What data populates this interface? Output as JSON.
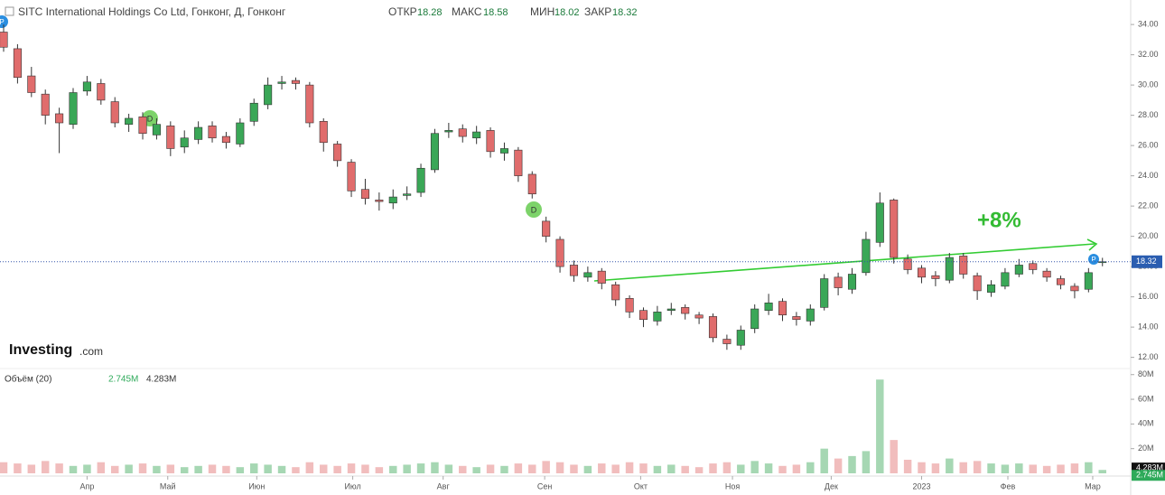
{
  "chart_data": {
    "type": "candlestick",
    "title": "SITC International Holdings Co Ltd, Гонконг, Д, Гонконг",
    "ohlc_labels": [
      "ОТКР",
      "МАКС",
      "МИН",
      "ЗАКР"
    ],
    "logo": [
      "Investing",
      ".com"
    ],
    "annotation": "+8%",
    "events": [
      "P",
      "D",
      "D",
      "P"
    ],
    "up_color": "#3aa757",
    "down_color": "#e06c6c",
    "open": [
      33.5,
      32.4,
      30.6,
      29.4,
      28.1,
      27.4,
      29.6,
      30.1,
      28.9,
      27.4,
      27.9,
      26.7,
      27.3,
      25.9,
      26.4,
      27.3,
      26.6,
      26.1,
      27.6,
      28.7,
      30.1,
      30.3,
      30,
      27.6,
      26.1,
      24.9,
      23.1,
      22.4,
      22.2,
      22.7,
      22.9,
      24.4,
      26.9,
      27.1,
      26.5,
      27,
      25.5,
      25.7,
      24.1,
      21,
      19.8,
      18.1,
      17.3,
      17.7,
      16.8,
      15.9,
      15.1,
      14.4,
      15.1,
      15.3,
      14.8,
      14.7,
      13.2,
      12.8,
      13.9,
      15.1,
      15.7,
      14.7,
      14.4,
      15.3,
      17.3,
      16.5,
      17.6,
      19.6,
      22.4,
      18.5,
      17.9,
      17.4,
      17.1,
      18.7,
      17.4,
      16.3,
      16.7,
      17.5,
      18.2,
      17.7,
      17.2,
      16.7,
      16.5,
      18.28
    ],
    "high": [
      34,
      32.7,
      31.2,
      29.7,
      28.5,
      29.8,
      30.6,
      30.4,
      29.2,
      28.1,
      28.2,
      27.8,
      27.6,
      27,
      27.6,
      27.6,
      26.9,
      27.8,
      29.1,
      30.5,
      30.6,
      30.5,
      30.2,
      27.8,
      26.3,
      25.1,
      23.8,
      22.9,
      23.1,
      23.3,
      24.8,
      27.1,
      27.5,
      27.4,
      27.3,
      27.2,
      26.2,
      25.9,
      24.3,
      21.3,
      20,
      18.4,
      18,
      17.9,
      17,
      16.1,
      15.3,
      15.4,
      15.6,
      15.5,
      15,
      14.9,
      13.5,
      14.1,
      15.5,
      16.2,
      15.9,
      15,
      15.5,
      17.5,
      17.6,
      17.9,
      20.3,
      22.9,
      22.5,
      18.8,
      18.1,
      17.7,
      18.9,
      18.9,
      17.6,
      17.1,
      17.9,
      18.5,
      18.4,
      17.9,
      17.4,
      16.9,
      17.9,
      18.58
    ],
    "low": [
      32.2,
      30.1,
      29.2,
      27.4,
      25.5,
      27.1,
      29.3,
      28.7,
      27.2,
      26.9,
      26.4,
      26.4,
      25.3,
      25.5,
      26.1,
      26.2,
      25.8,
      25.9,
      27.3,
      28.4,
      29.7,
      29.7,
      27.2,
      25.6,
      24.6,
      22.6,
      22.1,
      21.7,
      21.8,
      22.4,
      22.6,
      24.2,
      26.5,
      26.2,
      26.1,
      25.2,
      25,
      23.6,
      22.5,
      19.6,
      17.6,
      17,
      17,
      16.5,
      15.4,
      14.6,
      14,
      14.1,
      14.8,
      14.5,
      14.2,
      13,
      12.5,
      12.5,
      13.6,
      14.8,
      14.4,
      14.1,
      14.1,
      15.1,
      16.1,
      16.2,
      17.4,
      19.3,
      18.2,
      17.5,
      16.9,
      16.7,
      16.9,
      17.2,
      15.8,
      16,
      16.5,
      17.3,
      17.5,
      17,
      16.5,
      15.9,
      16.3,
      18.02
    ],
    "close": [
      32.5,
      30.5,
      29.5,
      28,
      27.5,
      29.5,
      30.2,
      29,
      27.5,
      27.8,
      26.8,
      27.4,
      25.8,
      26.5,
      27.2,
      26.5,
      26.2,
      27.5,
      28.8,
      30,
      30.2,
      30.1,
      27.5,
      26.2,
      25,
      23,
      22.5,
      22.3,
      22.6,
      22.8,
      24.5,
      26.8,
      27,
      26.6,
      26.9,
      25.6,
      25.8,
      24,
      22.8,
      20,
      18,
      17.4,
      17.6,
      16.9,
      15.8,
      15,
      14.5,
      15,
      15.2,
      14.9,
      14.6,
      13.3,
      12.9,
      13.8,
      15.2,
      15.6,
      14.8,
      14.5,
      15.2,
      17.2,
      16.6,
      17.5,
      19.8,
      22.2,
      18.6,
      17.8,
      17.3,
      17.2,
      18.6,
      17.5,
      16.4,
      16.8,
      17.6,
      18.1,
      17.8,
      17.3,
      16.8,
      16.4,
      17.6,
      18.32
    ],
    "xlim": [
      -0.26,
      80.9
    ],
    "xticks": [
      {
        "value": 6.0,
        "label": "Апр"
      },
      {
        "value": 11.8,
        "label": "Май"
      },
      {
        "value": 18.2,
        "label": "Июн"
      },
      {
        "value": 25.1,
        "label": "Июл"
      },
      {
        "value": 31.6,
        "label": "Авг"
      },
      {
        "value": 38.9,
        "label": "Сен"
      },
      {
        "value": 45.8,
        "label": "Окт"
      },
      {
        "value": 52.4,
        "label": "Ноя"
      },
      {
        "value": 59.5,
        "label": "Дек"
      },
      {
        "value": 66.0,
        "label": "2023"
      },
      {
        "value": 72.2,
        "label": "Фев"
      },
      {
        "value": 78.3,
        "label": "Мар"
      }
    ],
    "ylim": [
      11.5,
      35.5
    ],
    "yticks": [
      {
        "value": 12,
        "label": "12.00"
      },
      {
        "value": 14,
        "label": "14.00"
      },
      {
        "value": 16,
        "label": "16.00"
      },
      {
        "value": 18,
        "label": "18.00"
      },
      {
        "value": 20,
        "label": "20.00"
      },
      {
        "value": 22,
        "label": "22.00"
      },
      {
        "value": 24,
        "label": "24.00"
      },
      {
        "value": 26,
        "label": "26.00"
      },
      {
        "value": 28,
        "label": "28.00"
      },
      {
        "value": 30,
        "label": "30.00"
      },
      {
        "value": 32,
        "label": "32.00"
      },
      {
        "value": 34,
        "label": "34.00"
      }
    ],
    "volume": {
      "name": "Объём (20)",
      "values": [
        9,
        8,
        7,
        10,
        8,
        6,
        7,
        9,
        6,
        7,
        8,
        6,
        7,
        5,
        6,
        7,
        6,
        5,
        8,
        7,
        6,
        5,
        9,
        7,
        6,
        8,
        7,
        5,
        6,
        7,
        8,
        9,
        7,
        6,
        5,
        7,
        6,
        8,
        7,
        10,
        9,
        7,
        6,
        8,
        7,
        9,
        8,
        6,
        7,
        6,
        5,
        8,
        9,
        7,
        10,
        8,
        6,
        7,
        9,
        20,
        12,
        14,
        18,
        76,
        27,
        11,
        9,
        8,
        12,
        9,
        10,
        8,
        7,
        8,
        7,
        6,
        7,
        8,
        9,
        2.745
      ],
      "last_label": "2.745M",
      "ma": 4.283,
      "ma_label": "4.283M",
      "ylim": [
        0,
        82
      ],
      "yticks": [
        {
          "value": 20,
          "label": "20M"
        },
        {
          "value": 40,
          "label": "40M"
        },
        {
          "value": 60,
          "label": "60M"
        },
        {
          "value": 80,
          "label": "80M"
        }
      ]
    }
  }
}
